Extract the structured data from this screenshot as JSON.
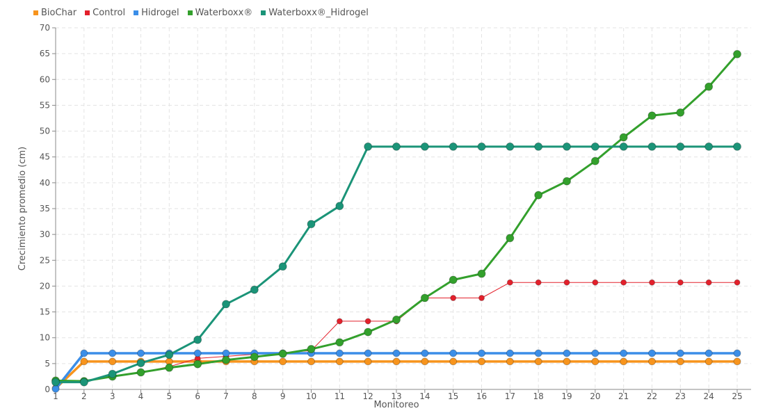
{
  "chart_data": {
    "type": "line",
    "xlabel": "Monitoreo",
    "ylabel": "Crecimiento promedio (cm)",
    "ylim": [
      0,
      70
    ],
    "yticks": [
      0,
      5,
      10,
      15,
      20,
      25,
      30,
      35,
      40,
      45,
      50,
      55,
      60,
      65,
      70
    ],
    "categories": [
      "1",
      "2",
      "3",
      "4",
      "5",
      "6",
      "7",
      "8",
      "9",
      "10",
      "11",
      "12",
      "13",
      "14",
      "15",
      "16",
      "17",
      "18",
      "19",
      "20",
      "21",
      "22",
      "23",
      "24",
      "25"
    ],
    "grid": true,
    "legend_position": "top-left",
    "series": [
      {
        "name": "BioChar",
        "color": "#f7941d",
        "values": [
          0.2,
          5.4,
          5.4,
          5.4,
          5.4,
          5.4,
          5.4,
          5.4,
          5.4,
          5.4,
          5.4,
          5.4,
          5.4,
          5.4,
          5.4,
          5.4,
          5.4,
          5.4,
          5.4,
          5.4,
          5.4,
          5.4,
          5.4,
          5.4,
          5.4
        ]
      },
      {
        "name": "Control",
        "color": "#e3202b",
        "values": [
          1.5,
          1.6,
          2.6,
          3.3,
          4.4,
          6.0,
          6.4,
          6.8,
          7.1,
          7.5,
          13.2,
          13.2,
          13.2,
          17.7,
          17.7,
          17.7,
          20.7,
          20.7,
          20.7,
          20.7,
          20.7,
          20.7,
          20.7,
          20.7,
          20.7
        ]
      },
      {
        "name": "Hidrogel",
        "color": "#3b8ee8",
        "values": [
          0.1,
          7.0,
          7.0,
          7.0,
          7.0,
          7.0,
          7.0,
          7.0,
          7.0,
          7.0,
          7.0,
          7.0,
          7.0,
          7.0,
          7.0,
          7.0,
          7.0,
          7.0,
          7.0,
          7.0,
          7.0,
          7.0,
          7.0,
          7.0,
          7.0
        ]
      },
      {
        "name": "Waterboxx®",
        "color": "#33a02c",
        "values": [
          1.7,
          1.6,
          2.5,
          3.3,
          4.2,
          4.9,
          5.7,
          6.3,
          6.9,
          7.8,
          9.1,
          11.1,
          13.5,
          17.7,
          21.2,
          22.4,
          29.3,
          37.6,
          40.3,
          44.2,
          48.8,
          53.0,
          53.6,
          58.6,
          64.9
        ]
      },
      {
        "name": "Waterboxx®_Hidrogel",
        "color": "#1b9478",
        "values": [
          1.4,
          1.4,
          3.0,
          5.1,
          6.7,
          9.6,
          16.5,
          19.3,
          23.8,
          32.0,
          35.5,
          47.0,
          47.0,
          47.0,
          47.0,
          47.0,
          47.0,
          47.0,
          47.0,
          47.0,
          47.0,
          47.0,
          47.0,
          47.0,
          47.0
        ]
      }
    ]
  }
}
